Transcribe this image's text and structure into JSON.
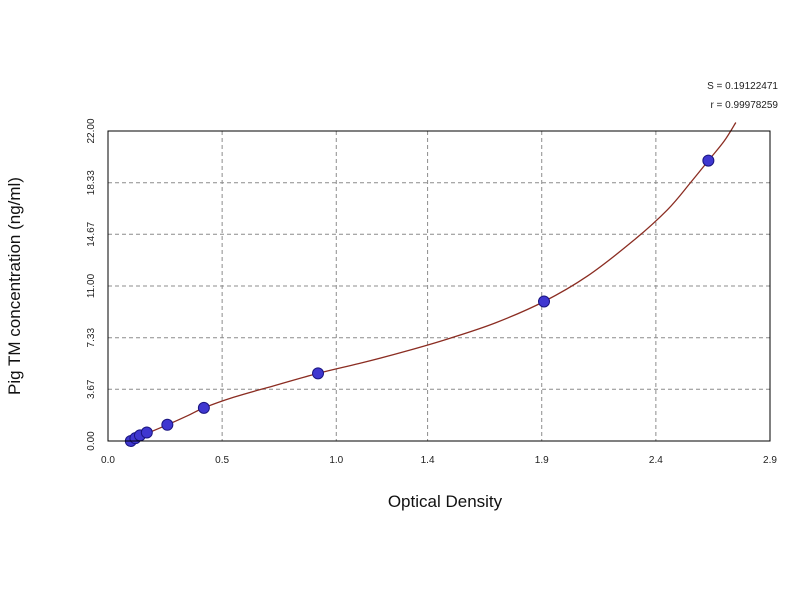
{
  "chart_data": {
    "type": "scatter",
    "title": "",
    "xlabel": "Optical Density",
    "ylabel": "Pig TM concentration (ng/ml)",
    "xlim": [
      0.0,
      2.9
    ],
    "ylim": [
      0.0,
      22.0
    ],
    "x_ticks": [
      {
        "value": 0.0,
        "label": "0.0"
      },
      {
        "value": 0.5,
        "label": "0.5"
      },
      {
        "value": 1.0,
        "label": "1.0"
      },
      {
        "value": 1.4,
        "label": "1.4"
      },
      {
        "value": 1.9,
        "label": "1.9"
      },
      {
        "value": 2.4,
        "label": "2.4"
      },
      {
        "value": 2.9,
        "label": "2.9"
      }
    ],
    "y_ticks": [
      {
        "value": 0.0,
        "label": "0.00"
      },
      {
        "value": 3.67,
        "label": "3.67"
      },
      {
        "value": 7.33,
        "label": "7.33"
      },
      {
        "value": 11.0,
        "label": "11.00"
      },
      {
        "value": 14.67,
        "label": "14.67"
      },
      {
        "value": 18.33,
        "label": "18.33"
      },
      {
        "value": 22.0,
        "label": "22.00"
      }
    ],
    "grid": true,
    "points": [
      {
        "x": 0.1,
        "y": 0.0
      },
      {
        "x": 0.12,
        "y": 0.2
      },
      {
        "x": 0.14,
        "y": 0.4
      },
      {
        "x": 0.17,
        "y": 0.6
      },
      {
        "x": 0.26,
        "y": 1.15
      },
      {
        "x": 0.42,
        "y": 2.35
      },
      {
        "x": 0.92,
        "y": 4.8
      },
      {
        "x": 1.91,
        "y": 9.9
      },
      {
        "x": 2.63,
        "y": 19.9
      }
    ],
    "fit_curve": [
      [
        0.08,
        -0.25
      ],
      [
        0.12,
        0.2
      ],
      [
        0.18,
        0.6
      ],
      [
        0.26,
        1.15
      ],
      [
        0.35,
        1.8
      ],
      [
        0.42,
        2.35
      ],
      [
        0.55,
        3.1
      ],
      [
        0.7,
        3.8
      ],
      [
        0.92,
        4.8
      ],
      [
        1.1,
        5.5
      ],
      [
        1.3,
        6.35
      ],
      [
        1.5,
        7.3
      ],
      [
        1.7,
        8.4
      ],
      [
        1.91,
        9.9
      ],
      [
        2.1,
        11.7
      ],
      [
        2.3,
        14.2
      ],
      [
        2.45,
        16.4
      ],
      [
        2.55,
        18.3
      ],
      [
        2.63,
        19.9
      ],
      [
        2.7,
        21.3
      ],
      [
        2.75,
        22.6
      ]
    ],
    "colors": {
      "curve": "#8b2d22",
      "point": "#3f37d0",
      "point_edge": "#1a1580",
      "grid": "#8c8c8c"
    },
    "stats": {
      "s_label": "S = 0.19122471",
      "r_label": "r = 0.99978259"
    }
  }
}
